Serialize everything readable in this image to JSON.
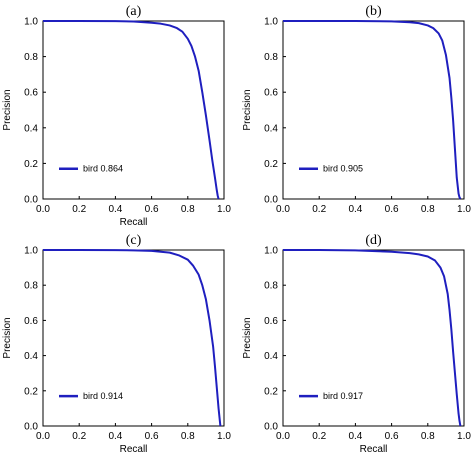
{
  "colors": {
    "curve": "#1f1fbf",
    "axis": "#000000"
  },
  "chart_data": [
    {
      "type": "line",
      "panel_label": "(a)",
      "xlabel": "Recall",
      "ylabel": "Precision",
      "xlim": [
        0,
        1
      ],
      "ylim": [
        0,
        1
      ],
      "xticks": [
        "0.0",
        "0.2",
        "0.4",
        "0.6",
        "0.8",
        "1.0"
      ],
      "yticks": [
        "0.0",
        "0.2",
        "0.4",
        "0.6",
        "0.8",
        "1.0"
      ],
      "grid": false,
      "legend_position": "lower-left",
      "series": [
        {
          "name": "bird 0.864",
          "x": [
            0,
            0.2,
            0.4,
            0.5,
            0.6,
            0.65,
            0.7,
            0.74,
            0.77,
            0.8,
            0.82,
            0.84,
            0.86,
            0.88,
            0.9,
            0.92,
            0.935,
            0.95,
            0.96,
            0.965,
            0.97
          ],
          "y": [
            1.0,
            1.0,
            0.999,
            0.997,
            0.99,
            0.985,
            0.975,
            0.96,
            0.94,
            0.9,
            0.86,
            0.8,
            0.72,
            0.6,
            0.47,
            0.33,
            0.22,
            0.12,
            0.05,
            0.02,
            0.0
          ]
        }
      ]
    },
    {
      "type": "line",
      "panel_label": "(b)",
      "xlabel": "",
      "ylabel": "Precision",
      "xlim": [
        0,
        1
      ],
      "ylim": [
        0,
        1
      ],
      "xticks": [
        "0.0",
        "0.2",
        "0.4",
        "0.6",
        "0.8",
        "1.0"
      ],
      "yticks": [
        "0.0",
        "0.2",
        "0.4",
        "0.6",
        "0.8",
        "1.0"
      ],
      "grid": false,
      "legend_position": "lower-left",
      "series": [
        {
          "name": "bird 0.905",
          "x": [
            0,
            0.2,
            0.4,
            0.6,
            0.7,
            0.75,
            0.8,
            0.83,
            0.86,
            0.88,
            0.9,
            0.92,
            0.93,
            0.94,
            0.95,
            0.96,
            0.97,
            0.975,
            0.98
          ],
          "y": [
            1.0,
            1.0,
            1.0,
            0.998,
            0.993,
            0.988,
            0.975,
            0.96,
            0.93,
            0.89,
            0.81,
            0.68,
            0.57,
            0.44,
            0.28,
            0.12,
            0.03,
            0.01,
            0.0
          ]
        }
      ]
    },
    {
      "type": "line",
      "panel_label": "(c)",
      "xlabel": "Recall",
      "ylabel": "Precision",
      "xlim": [
        0,
        1
      ],
      "ylim": [
        0,
        1
      ],
      "xticks": [
        "0.0",
        "0.2",
        "0.4",
        "0.6",
        "0.8",
        "1.0"
      ],
      "yticks": [
        "0.0",
        "0.2",
        "0.4",
        "0.6",
        "0.8",
        "1.0"
      ],
      "grid": false,
      "legend_position": "lower-left",
      "series": [
        {
          "name": "bird 0.914",
          "x": [
            0,
            0.2,
            0.4,
            0.5,
            0.6,
            0.65,
            0.7,
            0.75,
            0.8,
            0.83,
            0.86,
            0.88,
            0.9,
            0.92,
            0.94,
            0.95,
            0.96,
            0.97,
            0.975,
            0.98
          ],
          "y": [
            1.0,
            1.0,
            0.999,
            0.998,
            0.995,
            0.99,
            0.985,
            0.97,
            0.945,
            0.91,
            0.86,
            0.8,
            0.72,
            0.6,
            0.45,
            0.34,
            0.22,
            0.1,
            0.05,
            0.0
          ]
        }
      ]
    },
    {
      "type": "line",
      "panel_label": "(d)",
      "xlabel": "Recall",
      "ylabel": "Precision",
      "xlim": [
        0,
        1
      ],
      "ylim": [
        0,
        1
      ],
      "xticks": [
        "0.0",
        "0.2",
        "0.4",
        "0.6",
        "0.8",
        "1.0"
      ],
      "yticks": [
        "0.0",
        "0.2",
        "0.4",
        "0.6",
        "0.8",
        "1.0"
      ],
      "grid": false,
      "legend_position": "lower-left",
      "series": [
        {
          "name": "bird 0.917",
          "x": [
            0,
            0.2,
            0.4,
            0.6,
            0.7,
            0.75,
            0.8,
            0.84,
            0.87,
            0.89,
            0.91,
            0.92,
            0.93,
            0.94,
            0.95,
            0.96,
            0.97,
            0.975,
            0.98
          ],
          "y": [
            1.0,
            1.0,
            0.998,
            0.99,
            0.982,
            0.975,
            0.963,
            0.94,
            0.9,
            0.85,
            0.75,
            0.66,
            0.55,
            0.42,
            0.3,
            0.18,
            0.07,
            0.03,
            0.0
          ]
        }
      ]
    }
  ]
}
